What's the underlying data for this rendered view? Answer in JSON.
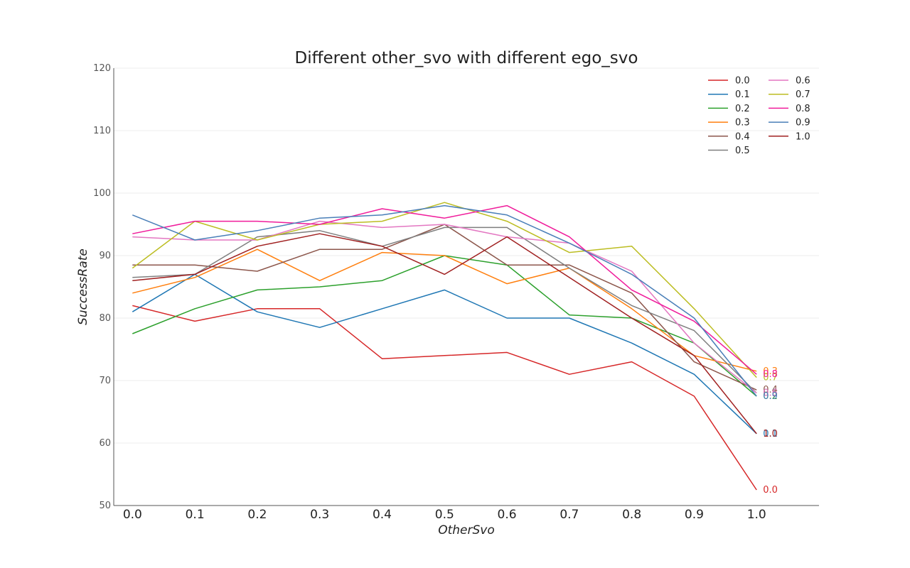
{
  "chart_data": {
    "type": "line",
    "title": "Different other_svo with different ego_svo",
    "xlabel": "OtherSvo",
    "ylabel": "SuccessRate",
    "x": [
      0.0,
      0.1,
      0.2,
      0.3,
      0.4,
      0.5,
      0.6,
      0.7,
      0.8,
      0.9,
      1.0
    ],
    "xtick_labels": [
      "0.0",
      "0.1",
      "0.2",
      "0.3",
      "0.4",
      "0.5",
      "0.6",
      "0.7",
      "0.8",
      "0.9",
      "1.0"
    ],
    "xlim": [
      -0.03,
      1.1
    ],
    "ylim": [
      50,
      120
    ],
    "yticks": [
      50,
      60,
      70,
      80,
      90,
      100,
      110,
      120
    ],
    "grid": "horizontal",
    "legend_position": "top-right",
    "legend_columns": 2,
    "end_labels": true,
    "series": [
      {
        "name": "0.0",
        "color": "#d62728",
        "values": [
          82.0,
          79.5,
          81.5,
          81.5,
          73.5,
          74.0,
          74.5,
          71.0,
          73.0,
          67.5,
          52.5
        ]
      },
      {
        "name": "0.1",
        "color": "#1f77b4",
        "values": [
          81.0,
          87.0,
          81.0,
          78.5,
          81.5,
          84.5,
          80.0,
          80.0,
          76.0,
          71.0,
          61.5
        ]
      },
      {
        "name": "0.2",
        "color": "#2ca02c",
        "values": [
          77.5,
          81.5,
          84.5,
          85.0,
          86.0,
          90.0,
          88.5,
          80.5,
          80.0,
          76.0,
          67.5
        ]
      },
      {
        "name": "0.3",
        "color": "#ff7f0e",
        "values": [
          84.0,
          86.5,
          91.0,
          86.0,
          90.5,
          90.0,
          85.5,
          88.0,
          81.5,
          74.0,
          71.5
        ]
      },
      {
        "name": "0.4",
        "color": "#8c564b",
        "values": [
          88.5,
          88.5,
          87.5,
          91.0,
          91.0,
          95.0,
          88.5,
          88.5,
          84.0,
          73.0,
          68.5
        ]
      },
      {
        "name": "0.5",
        "color": "#7f7f7f",
        "values": [
          86.5,
          87.0,
          93.0,
          94.0,
          91.5,
          94.5,
          94.5,
          88.0,
          82.0,
          78.0,
          68.0
        ]
      },
      {
        "name": "0.6",
        "color": "#e377c2",
        "values": [
          93.0,
          92.5,
          92.5,
          95.5,
          94.5,
          95.0,
          93.0,
          92.0,
          87.5,
          76.0,
          68.0
        ]
      },
      {
        "name": "0.7",
        "color": "#bcbd22",
        "values": [
          88.0,
          95.5,
          92.5,
          95.0,
          95.5,
          98.5,
          95.5,
          90.5,
          91.5,
          81.5,
          70.5
        ]
      },
      {
        "name": "0.8",
        "color": "#f01c9b",
        "values": [
          93.5,
          95.5,
          95.5,
          95.0,
          97.5,
          96.0,
          98.0,
          93.0,
          84.5,
          79.5,
          71.0
        ]
      },
      {
        "name": "0.9",
        "color": "#4a7fb8",
        "values": [
          96.5,
          92.5,
          94.0,
          96.0,
          96.5,
          98.0,
          96.5,
          92.0,
          87.0,
          80.0,
          67.5
        ]
      },
      {
        "name": "1.0",
        "color": "#a02020",
        "values": [
          86.0,
          87.0,
          91.5,
          93.5,
          91.5,
          87.0,
          93.0,
          86.5,
          80.0,
          74.0,
          61.5
        ]
      }
    ]
  }
}
